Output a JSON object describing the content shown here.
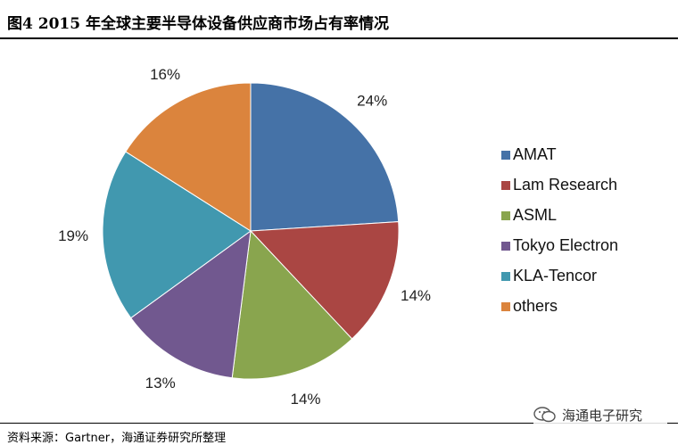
{
  "header": {
    "title": "图4  2015 年全球主要半导体设备供应商市场占有率情况"
  },
  "chart_data": {
    "type": "pie",
    "title": "",
    "legend_position": "right",
    "slices": [
      {
        "name": "AMAT",
        "value": 24,
        "label": "24%",
        "color": "#4572A7"
      },
      {
        "name": "Lam Research",
        "value": 14,
        "label": "14%",
        "color": "#AA4643"
      },
      {
        "name": "ASML",
        "value": 14,
        "label": "14%",
        "color": "#89A54E"
      },
      {
        "name": "Tokyo Electron",
        "value": 13,
        "label": "13%",
        "color": "#71588F"
      },
      {
        "name": "KLA-Tencor",
        "value": 19,
        "label": "19%",
        "color": "#4198AF"
      },
      {
        "name": "others",
        "value": 16,
        "label": "16%",
        "color": "#DB843D"
      }
    ]
  },
  "footer": {
    "source": "资料来源：Gartner，海通证券研究所整理",
    "watermark": "海通电子研究",
    "watermark_icon": "wechat-icon"
  }
}
